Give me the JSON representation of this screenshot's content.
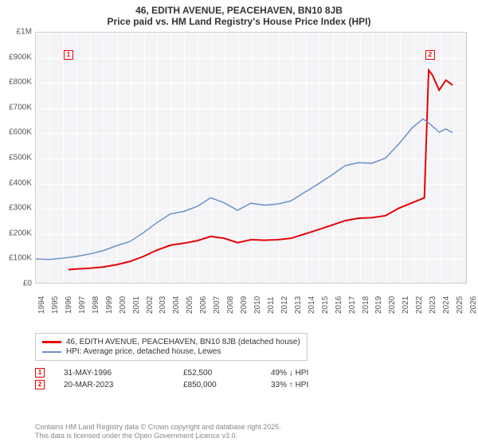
{
  "title": "46, EDITH AVENUE, PEACEHAVEN, BN10 8JB",
  "subtitle": "Price paid vs. HM Land Registry's House Price Index (HPI)",
  "chart": {
    "xlim": [
      1994,
      2026
    ],
    "ylim": [
      0,
      1000000
    ],
    "ytick_step": 100000,
    "ytick_labels": [
      "£0",
      "£100K",
      "£200K",
      "£300K",
      "£400K",
      "£500K",
      "£600K",
      "£700K",
      "£800K",
      "£900K",
      "£1M"
    ],
    "xtick_step": 1,
    "xtick_labels": [
      "1994",
      "1995",
      "1996",
      "1997",
      "1998",
      "1999",
      "2000",
      "2001",
      "2002",
      "2003",
      "2004",
      "2005",
      "2006",
      "2007",
      "2008",
      "2009",
      "2010",
      "2011",
      "2012",
      "2013",
      "2014",
      "2015",
      "2016",
      "2017",
      "2018",
      "2019",
      "2020",
      "2021",
      "2022",
      "2023",
      "2024",
      "2025",
      "2026"
    ],
    "background_color": "#f4f4f7",
    "grid_color": "#ffffff",
    "border_color": "#c8c8d0",
    "series": [
      {
        "name": "property",
        "color": "#e60000",
        "width": 2,
        "points": [
          [
            1996.42,
            52500
          ],
          [
            1997,
            55000
          ],
          [
            1998,
            58000
          ],
          [
            1999,
            63000
          ],
          [
            2000,
            72000
          ],
          [
            2001,
            85000
          ],
          [
            2002,
            105000
          ],
          [
            2003,
            130000
          ],
          [
            2004,
            150000
          ],
          [
            2005,
            158000
          ],
          [
            2006,
            168000
          ],
          [
            2007,
            185000
          ],
          [
            2008,
            178000
          ],
          [
            2009,
            160000
          ],
          [
            2010,
            172000
          ],
          [
            2011,
            170000
          ],
          [
            2012,
            172000
          ],
          [
            2013,
            178000
          ],
          [
            2014,
            195000
          ],
          [
            2015,
            212000
          ],
          [
            2016,
            230000
          ],
          [
            2017,
            248000
          ],
          [
            2018,
            258000
          ],
          [
            2019,
            260000
          ],
          [
            2020,
            268000
          ],
          [
            2021,
            298000
          ],
          [
            2022,
            320000
          ],
          [
            2022.9,
            340000
          ],
          [
            2023.22,
            850000
          ],
          [
            2023.5,
            830000
          ],
          [
            2024,
            770000
          ],
          [
            2024.5,
            810000
          ],
          [
            2025,
            790000
          ]
        ]
      },
      {
        "name": "hpi",
        "color": "#6b8fc9",
        "width": 1.5,
        "points": [
          [
            1994,
            95000
          ],
          [
            1995,
            93000
          ],
          [
            1996,
            98000
          ],
          [
            1997,
            105000
          ],
          [
            1998,
            115000
          ],
          [
            1999,
            128000
          ],
          [
            2000,
            148000
          ],
          [
            2001,
            165000
          ],
          [
            2002,
            200000
          ],
          [
            2003,
            240000
          ],
          [
            2004,
            275000
          ],
          [
            2005,
            285000
          ],
          [
            2006,
            305000
          ],
          [
            2007,
            340000
          ],
          [
            2008,
            320000
          ],
          [
            2009,
            290000
          ],
          [
            2010,
            318000
          ],
          [
            2011,
            310000
          ],
          [
            2012,
            315000
          ],
          [
            2013,
            328000
          ],
          [
            2014,
            362000
          ],
          [
            2015,
            395000
          ],
          [
            2016,
            430000
          ],
          [
            2017,
            468000
          ],
          [
            2018,
            480000
          ],
          [
            2019,
            478000
          ],
          [
            2020,
            498000
          ],
          [
            2021,
            555000
          ],
          [
            2022,
            620000
          ],
          [
            2022.8,
            655000
          ],
          [
            2023.2,
            640000
          ],
          [
            2024,
            602000
          ],
          [
            2024.5,
            615000
          ],
          [
            2025,
            600000
          ]
        ]
      }
    ],
    "markers": [
      {
        "label": "1",
        "x": 1996.42,
        "y": 910000,
        "color": "#e60000"
      },
      {
        "label": "2",
        "x": 2023.22,
        "y": 910000,
        "color": "#e60000"
      }
    ]
  },
  "legend": {
    "series1": "46, EDITH AVENUE, PEACEHAVEN, BN10 8JB (detached house)",
    "series2": "HPI: Average price, detached house, Lewes",
    "series1_color": "#e60000",
    "series2_color": "#6b8fc9"
  },
  "transactions": [
    {
      "marker": "1",
      "marker_color": "#e60000",
      "date": "31-MAY-1996",
      "price": "£52,500",
      "pct": "49% ↓ HPI"
    },
    {
      "marker": "2",
      "marker_color": "#e60000",
      "date": "20-MAR-2023",
      "price": "£850,000",
      "pct": "33% ↑ HPI"
    }
  ],
  "footer": {
    "line1": "Contains HM Land Registry data © Crown copyright and database right 2025.",
    "line2": "This data is licensed under the Open Government Licence v3.0."
  }
}
